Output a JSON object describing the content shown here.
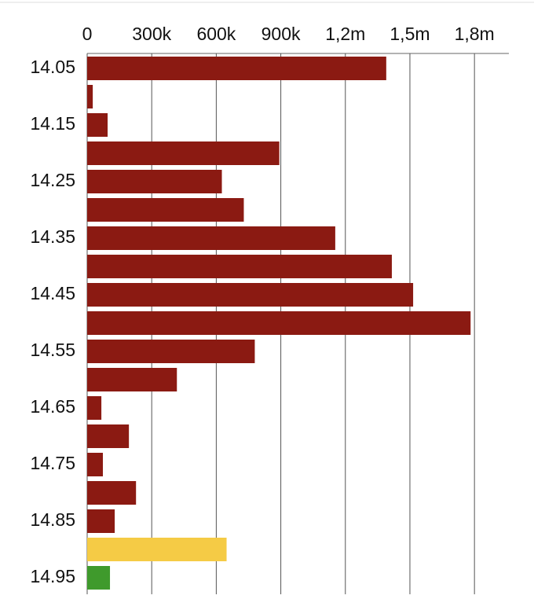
{
  "chart_data": {
    "type": "bar",
    "orientation": "horizontal",
    "categories": [
      "14.05",
      null,
      "14.15",
      null,
      "14.25",
      null,
      "14.35",
      null,
      "14.45",
      null,
      "14.55",
      null,
      "14.65",
      null,
      "14.75",
      null,
      "14.85",
      null,
      "14.95"
    ],
    "values": [
      1390000,
      26000,
      95000,
      893000,
      626000,
      728000,
      1153000,
      1416000,
      1515000,
      1782000,
      779000,
      417000,
      66000,
      194000,
      73000,
      227000,
      128000,
      648000,
      106000
    ],
    "colors": [
      "#8b1a12",
      "#8b1a12",
      "#8b1a12",
      "#8b1a12",
      "#8b1a12",
      "#8b1a12",
      "#8b1a12",
      "#8b1a12",
      "#8b1a12",
      "#8b1a12",
      "#8b1a12",
      "#8b1a12",
      "#8b1a12",
      "#8b1a12",
      "#8b1a12",
      "#8b1a12",
      "#8b1a12",
      "#f5cb45",
      "#3f9a2c"
    ],
    "xlim": [
      0,
      1960000
    ],
    "xticks": [
      0,
      {
        "value": 300000,
        "label": "300k"
      },
      {
        "value": 600000,
        "label": "600k"
      },
      {
        "value": 900000,
        "label": "900k"
      },
      {
        "value": 1200000,
        "label": "1,2m"
      },
      {
        "value": 1500000,
        "label": "1,5m"
      },
      {
        "value": 1800000,
        "label": "1,8m"
      }
    ],
    "grid": true
  }
}
